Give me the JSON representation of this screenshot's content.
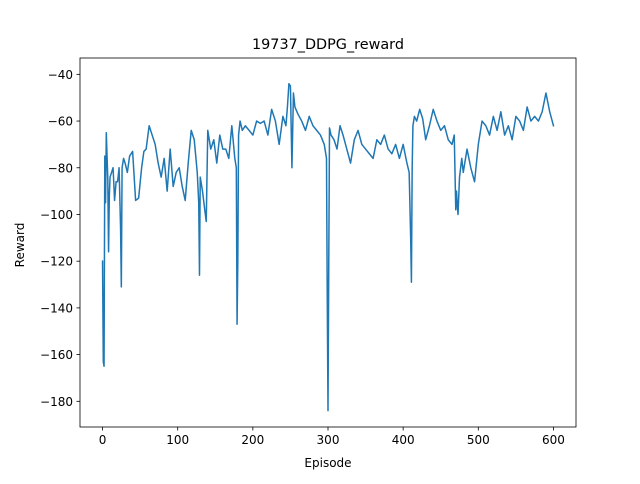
{
  "colors": {
    "series": "#1f77b4",
    "axis": "#000000",
    "background": "#ffffff"
  },
  "chart_data": {
    "type": "line",
    "title": "19737_DDPG_reward",
    "xlabel": "Episode",
    "ylabel": "Reward",
    "xlim": [
      -30,
      630
    ],
    "ylim": [
      -191,
      -33
    ],
    "grid": false,
    "legend": "none",
    "x_ticks": [
      0,
      100,
      200,
      300,
      400,
      500,
      600
    ],
    "x_tick_labels": [
      "0",
      "100",
      "200",
      "300",
      "400",
      "500",
      "600"
    ],
    "y_ticks": [
      -180,
      -160,
      -140,
      -120,
      -100,
      -80,
      -60,
      -40
    ],
    "y_tick_labels": [
      "−180",
      "−160",
      "−140",
      "−120",
      "−100",
      "−80",
      "−60",
      "−40"
    ],
    "series": [
      {
        "x": [
          0,
          1,
          2,
          3,
          4,
          5,
          6,
          7,
          8,
          9,
          10,
          12,
          14,
          16,
          18,
          20,
          22,
          24,
          25,
          26,
          28,
          30,
          33,
          36,
          40,
          44,
          48,
          52,
          55,
          58,
          62,
          66,
          70,
          74,
          78,
          82,
          86,
          90,
          94,
          98,
          102,
          106,
          110,
          114,
          118,
          122,
          126,
          128,
          129,
          130,
          133,
          136,
          138,
          140,
          144,
          148,
          152,
          156,
          160,
          164,
          168,
          172,
          176,
          178,
          179,
          180,
          181,
          183,
          186,
          190,
          195,
          200,
          205,
          210,
          215,
          220,
          225,
          230,
          235,
          240,
          244,
          246,
          248,
          250,
          252,
          254,
          256,
          260,
          265,
          270,
          275,
          280,
          285,
          290,
          295,
          298,
          299,
          300,
          301,
          302,
          304,
          308,
          312,
          316,
          320,
          325,
          330,
          335,
          340,
          345,
          350,
          355,
          360,
          365,
          370,
          375,
          380,
          385,
          390,
          395,
          400,
          405,
          408,
          410,
          411,
          412,
          413,
          415,
          418,
          422,
          426,
          430,
          435,
          440,
          445,
          450,
          455,
          460,
          465,
          468,
          470,
          471,
          472,
          473,
          475,
          478,
          480,
          485,
          490,
          495,
          500,
          505,
          510,
          515,
          520,
          525,
          530,
          535,
          540,
          545,
          550,
          555,
          560,
          565,
          570,
          575,
          580,
          585,
          590,
          595,
          600
        ],
        "y": [
          -120,
          -163,
          -165,
          -75,
          -95,
          -65,
          -75,
          -85,
          -116,
          -92,
          -84,
          -82,
          -80,
          -94,
          -86,
          -86,
          -80,
          -106,
          -131,
          -80,
          -76,
          -78,
          -82,
          -75,
          -73,
          -94,
          -93,
          -80,
          -73,
          -72,
          -62,
          -66,
          -70,
          -78,
          -84,
          -76,
          -90,
          -72,
          -88,
          -82,
          -80,
          -88,
          -94,
          -78,
          -64,
          -68,
          -82,
          -95,
          -126,
          -84,
          -90,
          -98,
          -103,
          -64,
          -72,
          -68,
          -78,
          -66,
          -72,
          -72,
          -76,
          -62,
          -76,
          -80,
          -147,
          -120,
          -66,
          -60,
          -64,
          -62,
          -64,
          -66,
          -60,
          -61,
          -60,
          -66,
          -55,
          -60,
          -70,
          -58,
          -62,
          -54,
          -44,
          -45,
          -80,
          -48,
          -54,
          -57,
          -60,
          -64,
          -58,
          -62,
          -64,
          -66,
          -70,
          -76,
          -135,
          -184,
          -122,
          -63,
          -66,
          -68,
          -72,
          -62,
          -66,
          -72,
          -78,
          -68,
          -64,
          -70,
          -72,
          -74,
          -76,
          -68,
          -70,
          -66,
          -72,
          -74,
          -70,
          -76,
          -70,
          -78,
          -82,
          -110,
          -129,
          -80,
          -62,
          -58,
          -60,
          -55,
          -59,
          -68,
          -62,
          -55,
          -60,
          -64,
          -62,
          -68,
          -70,
          -66,
          -98,
          -90,
          -96,
          -100,
          -84,
          -76,
          -82,
          -72,
          -80,
          -86,
          -70,
          -60,
          -62,
          -66,
          -58,
          -64,
          -56,
          -66,
          -62,
          -68,
          -58,
          -60,
          -64,
          -54,
          -60,
          -58,
          -60,
          -56,
          -48,
          -56,
          -62
        ]
      }
    ]
  }
}
